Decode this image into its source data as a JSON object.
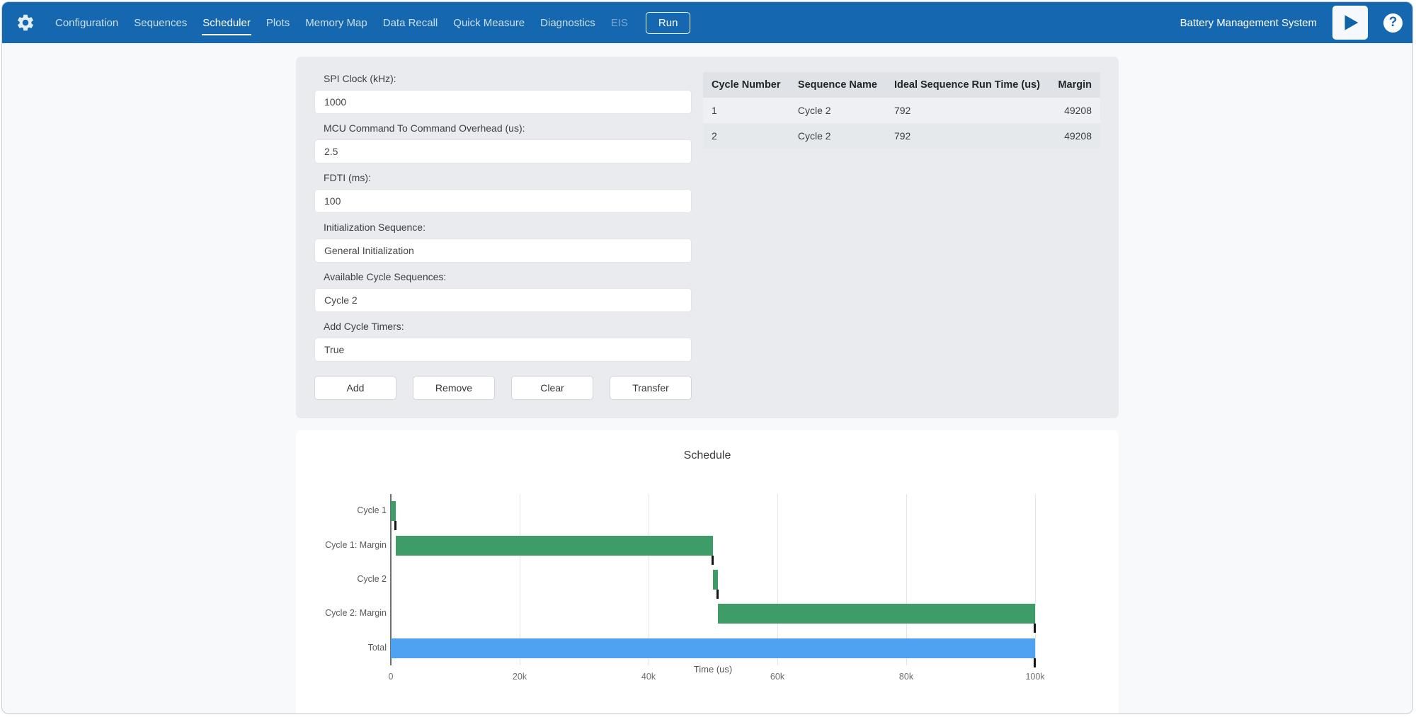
{
  "nav": {
    "items": [
      {
        "label": "Configuration"
      },
      {
        "label": "Sequences"
      },
      {
        "label": "Scheduler",
        "active": true
      },
      {
        "label": "Plots"
      },
      {
        "label": "Memory Map"
      },
      {
        "label": "Data Recall"
      },
      {
        "label": "Quick Measure"
      },
      {
        "label": "Diagnostics"
      },
      {
        "label": "EIS",
        "disabled": true
      }
    ],
    "run_label": "Run",
    "brand": "Battery Management System",
    "help_glyph": "?"
  },
  "form": {
    "fields": [
      {
        "label": "SPI Clock (kHz):",
        "value": "1000"
      },
      {
        "label": "MCU Command To Command Overhead (us):",
        "value": "2.5"
      },
      {
        "label": "FDTI (ms):",
        "value": "100"
      },
      {
        "label": "Initialization Sequence:",
        "value": "General Initialization"
      },
      {
        "label": "Available Cycle Sequences:",
        "value": "Cycle 2"
      },
      {
        "label": "Add Cycle Timers:",
        "value": "True"
      }
    ],
    "buttons": [
      "Add",
      "Remove",
      "Clear",
      "Transfer"
    ]
  },
  "table": {
    "headers": [
      "Cycle Number",
      "Sequence Name",
      "Ideal Sequence Run Time (us)",
      "Margin"
    ],
    "rows": [
      [
        "1",
        "Cycle 2",
        "792",
        "49208"
      ],
      [
        "2",
        "Cycle 2",
        "792",
        "49208"
      ]
    ]
  },
  "chart_data": {
    "type": "bar",
    "orientation": "horizontal",
    "title": "Schedule",
    "xlabel": "Time (us)",
    "categories": [
      "Cycle 1",
      "Cycle 1: Margin",
      "Cycle 2",
      "Cycle 2: Margin",
      "Total"
    ],
    "bars": [
      {
        "label": "Cycle 1",
        "start": 0,
        "end": 792,
        "color": "#3e9c68"
      },
      {
        "label": "Cycle 1: Margin",
        "start": 792,
        "end": 50000,
        "color": "#3e9c68"
      },
      {
        "label": "Cycle 2",
        "start": 50000,
        "end": 50792,
        "color": "#3e9c68"
      },
      {
        "label": "Cycle 2: Margin",
        "start": 50792,
        "end": 100000,
        "color": "#3e9c68"
      },
      {
        "label": "Total",
        "start": 0,
        "end": 100000,
        "color": "#4fa2f2"
      }
    ],
    "xlim": [
      0,
      100000
    ],
    "ticks": [
      {
        "value": 0,
        "label": "0"
      },
      {
        "value": 20000,
        "label": "20k"
      },
      {
        "value": 40000,
        "label": "40k"
      },
      {
        "value": 60000,
        "label": "60k"
      },
      {
        "value": 80000,
        "label": "80k"
      },
      {
        "value": 100000,
        "label": "100k"
      }
    ],
    "colors": {
      "cycle": "#3e9c68",
      "total": "#4fa2f2",
      "end_cap": "#141414"
    },
    "grid": true,
    "legend": false
  }
}
